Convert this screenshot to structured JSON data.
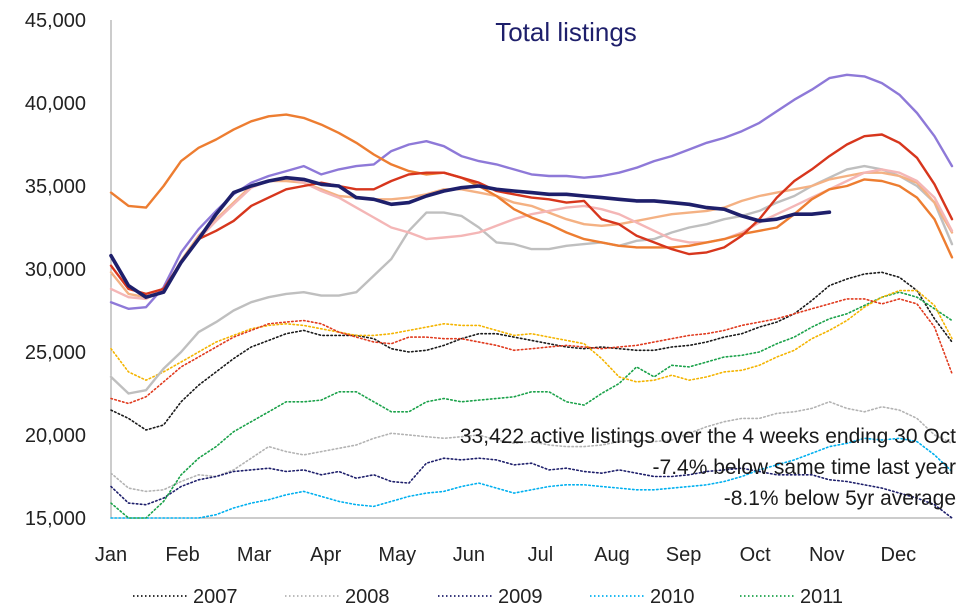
{
  "chart_data": {
    "type": "line",
    "title": "Total listings",
    "xlabel": "",
    "ylabel": "",
    "ylim": [
      15000,
      45000
    ],
    "y_ticks": [
      "15,000",
      "20,000",
      "25,000",
      "30,000",
      "35,000",
      "40,000",
      "45,000"
    ],
    "y_tick_values": [
      15000,
      20000,
      25000,
      30000,
      35000,
      40000,
      45000
    ],
    "x_ticks": [
      "Jan",
      "Feb",
      "Mar",
      "Apr",
      "May",
      "Jun",
      "Jul",
      "Aug",
      "Sep",
      "Oct",
      "Nov",
      "Dec"
    ],
    "grid": false,
    "legend_position": "bottom",
    "annotations": [
      "33,422 active listings over the 4 weeks ending 30 Oct",
      "-7.4% below same time last year",
      "-8.1% below 5yr average"
    ],
    "series": [
      {
        "name": "2007",
        "color": "#1a1a1a",
        "style": "dotted",
        "values": [
          21500,
          21000,
          20300,
          20600,
          22000,
          23000,
          23800,
          24600,
          25300,
          25700,
          26100,
          26300,
          26000,
          26000,
          26000,
          25800,
          25200,
          25000,
          25100,
          25400,
          25800,
          26100,
          26100,
          25900,
          25700,
          25500,
          25300,
          25200,
          25300,
          25200,
          25100,
          25100,
          25300,
          25400,
          25600,
          25900,
          26100,
          26500,
          26800,
          27300,
          28100,
          29000,
          29400,
          29700,
          29800,
          29500,
          28700,
          27000,
          25600
        ]
      },
      {
        "name": "2008",
        "color": "#b3b3b3",
        "style": "dotted",
        "values": [
          17700,
          16800,
          16600,
          16700,
          17200,
          17600,
          17500,
          17900,
          18600,
          19300,
          19000,
          18800,
          19000,
          19200,
          19400,
          19800,
          20100,
          20000,
          19900,
          19800,
          19900,
          20000,
          19700,
          19500,
          19600,
          19400,
          19300,
          19300,
          19400,
          19600,
          19700,
          19600,
          19700,
          20100,
          20500,
          20800,
          21000,
          21000,
          21300,
          21400,
          21600,
          22000,
          21600,
          21400,
          21700,
          21500,
          21000,
          20000,
          19500
        ]
      },
      {
        "name": "2009",
        "color": "#1e1f6b",
        "style": "dotted",
        "values": [
          16900,
          15900,
          15800,
          16200,
          16900,
          17300,
          17500,
          17800,
          17900,
          18000,
          17800,
          17900,
          17600,
          17800,
          17400,
          17600,
          17200,
          17100,
          18300,
          18600,
          18500,
          18600,
          18500,
          18200,
          18300,
          17900,
          18000,
          17800,
          17700,
          17900,
          17700,
          17500,
          17500,
          17600,
          17800,
          17900,
          18000,
          17800,
          17600,
          17600,
          17600,
          17300,
          17200,
          17000,
          16800,
          16500,
          16200,
          15800,
          14800
        ]
      },
      {
        "name": "2010",
        "color": "#00b0f0",
        "style": "dotted",
        "values": [
          14300,
          14300,
          14300,
          14300,
          14600,
          14800,
          15200,
          15600,
          15900,
          16100,
          16400,
          16600,
          16300,
          16000,
          15800,
          15700,
          16000,
          16300,
          16500,
          16600,
          16900,
          17100,
          16800,
          16500,
          16700,
          16900,
          17000,
          17000,
          16900,
          16800,
          16700,
          16700,
          16800,
          16900,
          17000,
          17200,
          17500,
          17900,
          18200,
          18500,
          18900,
          19300,
          19500,
          19800,
          19700,
          19800,
          19600,
          18800,
          17800
        ]
      },
      {
        "name": "2011",
        "color": "#1ba24a",
        "style": "dotted",
        "values": [
          15900,
          14700,
          15000,
          16000,
          17600,
          18600,
          19300,
          20200,
          20800,
          21400,
          22000,
          22000,
          22100,
          22600,
          22600,
          22000,
          21400,
          21400,
          22000,
          22200,
          22000,
          22100,
          22200,
          22300,
          22600,
          22600,
          22000,
          21800,
          22500,
          23100,
          24100,
          23500,
          24200,
          24100,
          24400,
          24700,
          24800,
          25000,
          25500,
          25900,
          26500,
          27000,
          27300,
          27800,
          28300,
          28600,
          28300,
          27600,
          26900
        ]
      },
      {
        "name": "",
        "color": "#f4b400",
        "style": "dotted",
        "values": [
          25200,
          23800,
          23300,
          23800,
          24400,
          25000,
          25600,
          26000,
          26400,
          26600,
          26700,
          26600,
          26400,
          26200,
          26000,
          26000,
          26100,
          26300,
          26500,
          26700,
          26600,
          26600,
          26300,
          26000,
          26100,
          25900,
          25700,
          25500,
          24600,
          23500,
          23200,
          23300,
          23600,
          23300,
          23500,
          23800,
          23900,
          24200,
          24700,
          25100,
          25800,
          26300,
          26900,
          27700,
          28300,
          28700,
          28700,
          27800,
          25800
        ]
      },
      {
        "name": "",
        "color": "#e03a1e",
        "style": "dotted",
        "values": [
          22200,
          21900,
          22300,
          23200,
          24100,
          24700,
          25300,
          25900,
          26300,
          26700,
          26800,
          26900,
          26700,
          26200,
          25900,
          25600,
          25500,
          25900,
          25900,
          25800,
          25800,
          25600,
          25400,
          25100,
          25200,
          25300,
          25400,
          25300,
          25200,
          25300,
          25400,
          25600,
          25800,
          26000,
          26100,
          26300,
          26600,
          26800,
          27000,
          27300,
          27600,
          27900,
          28200,
          28200,
          27900,
          28200,
          27900,
          26500,
          23700
        ]
      },
      {
        "name": "",
        "color": "#bfbfbf",
        "style": "solid",
        "values": [
          23500,
          22500,
          22700,
          24000,
          25000,
          26200,
          26800,
          27500,
          28000,
          28300,
          28500,
          28600,
          28400,
          28400,
          28600,
          29600,
          30600,
          32300,
          33400,
          33400,
          33200,
          32500,
          31600,
          31500,
          31200,
          31200,
          31400,
          31500,
          31600,
          31400,
          31700,
          31800,
          32200,
          32500,
          32700,
          33000,
          33200,
          33500,
          34000,
          34400,
          35000,
          35500,
          36000,
          36200,
          36000,
          35600,
          35000,
          34000,
          31500
        ]
      },
      {
        "name": "",
        "color": "#f4b183",
        "style": "solid",
        "values": [
          29800,
          28500,
          28300,
          28700,
          30500,
          32000,
          33000,
          34000,
          35000,
          35300,
          35300,
          35200,
          34800,
          34400,
          34300,
          34200,
          34200,
          34300,
          34500,
          34800,
          34800,
          34600,
          34400,
          34000,
          33800,
          33400,
          33000,
          32700,
          32600,
          32700,
          32900,
          33100,
          33300,
          33400,
          33500,
          33700,
          34100,
          34400,
          34600,
          34800,
          35000,
          35400,
          35600,
          35800,
          35800,
          35600,
          35200,
          34000,
          32200
        ]
      },
      {
        "name": "",
        "color": "#f4b6b6",
        "style": "solid",
        "values": [
          28800,
          28300,
          28200,
          28800,
          30400,
          31800,
          32900,
          33900,
          34900,
          35300,
          35500,
          35200,
          34700,
          34300,
          33700,
          33100,
          32500,
          32200,
          31800,
          31900,
          32000,
          32200,
          32600,
          33000,
          33300,
          33500,
          33700,
          33800,
          33600,
          33300,
          32800,
          32300,
          31800,
          31600,
          31600,
          31800,
          32200,
          32800,
          33300,
          33800,
          34300,
          34800,
          35300,
          35800,
          36000,
          35800,
          35300,
          34300,
          32300
        ]
      },
      {
        "name": "",
        "color": "#8e79d8",
        "style": "solid",
        "values": [
          28000,
          27600,
          27700,
          28900,
          31000,
          32400,
          33500,
          34500,
          35200,
          35600,
          35900,
          36200,
          35700,
          36000,
          36200,
          36300,
          37100,
          37500,
          37700,
          37400,
          36800,
          36500,
          36300,
          36000,
          35700,
          35600,
          35600,
          35500,
          35600,
          35800,
          36100,
          36500,
          36800,
          37200,
          37600,
          37900,
          38300,
          38800,
          39500,
          40200,
          40800,
          41500,
          41700,
          41600,
          41200,
          40500,
          39400,
          38000,
          36200
        ]
      },
      {
        "name": "",
        "color": "#ed7d31",
        "style": "solid",
        "values": [
          34600,
          33800,
          33700,
          35000,
          36500,
          37300,
          37800,
          38400,
          38900,
          39200,
          39300,
          39100,
          38700,
          38200,
          37600,
          36900,
          36300,
          35900,
          35700,
          35800,
          35500,
          35000,
          34400,
          33600,
          33100,
          32700,
          32200,
          31800,
          31600,
          31400,
          31300,
          31300,
          31300,
          31400,
          31600,
          31800,
          32100,
          32300,
          32500,
          33300,
          34200,
          34800,
          35000,
          35400,
          35300,
          35000,
          34300,
          33000,
          30700
        ]
      },
      {
        "name": "",
        "color": "#d7361d",
        "style": "solid",
        "values": [
          30200,
          28800,
          28500,
          28800,
          30400,
          31800,
          32300,
          32900,
          33800,
          34300,
          34800,
          35000,
          35200,
          35000,
          34800,
          34800,
          35300,
          35700,
          35800,
          35800,
          35500,
          35200,
          34700,
          34500,
          34300,
          34200,
          34000,
          34100,
          33000,
          32700,
          32000,
          31600,
          31200,
          30900,
          31000,
          31300,
          32000,
          33000,
          34300,
          35300,
          36000,
          36800,
          37500,
          38000,
          38100,
          37600,
          36700,
          35100,
          33000
        ]
      },
      {
        "name": "",
        "color": "#1e1f6b",
        "style": "solid-thick",
        "values": [
          30800,
          29000,
          28300,
          28600,
          30400,
          31800,
          33300,
          34600,
          35000,
          35300,
          35500,
          35400,
          35100,
          35000,
          34300,
          34200,
          33900,
          34000,
          34400,
          34700,
          34900,
          35000,
          34800,
          34700,
          34600,
          34500,
          34500,
          34400,
          34300,
          34200,
          34100,
          34100,
          34000,
          33900,
          33700,
          33600,
          33200,
          32900,
          33000,
          33300,
          33300,
          33422
        ]
      }
    ]
  }
}
